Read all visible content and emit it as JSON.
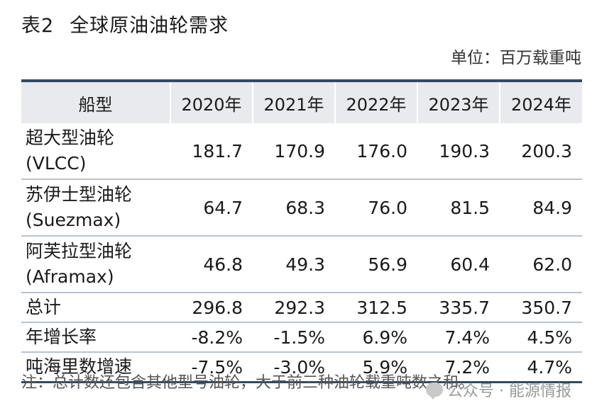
{
  "title": {
    "number": "表2",
    "text": "全球原油油轮需求"
  },
  "unit": "单位：百万载重吨",
  "table": {
    "headers": [
      "船型",
      "2020年",
      "2021年",
      "2022年",
      "2023年",
      "2024年"
    ],
    "rows": [
      {
        "name_line1": "超大型油轮",
        "name_line2": "(VLCC)",
        "values": [
          "181.7",
          "170.9",
          "176.0",
          "190.3",
          "200.3"
        ]
      },
      {
        "name_line1": "苏伊士型油轮",
        "name_line2": "(Suezmax)",
        "values": [
          "64.7",
          "68.3",
          "76.0",
          "81.5",
          "84.9"
        ]
      },
      {
        "name_line1": "阿芙拉型油轮",
        "name_line2": "(Aframax)",
        "values": [
          "46.8",
          "49.3",
          "56.9",
          "60.4",
          "62.0"
        ]
      },
      {
        "name_line1": "总计",
        "values": [
          "296.8",
          "292.3",
          "312.5",
          "335.7",
          "350.7"
        ]
      },
      {
        "name_line1": "年增长率",
        "values": [
          "-8.2%",
          "-1.5%",
          "6.9%",
          "7.4%",
          "4.5%"
        ]
      },
      {
        "name_line1": "吨海里数增速",
        "values": [
          "-7.5%",
          "-3.0%",
          "5.9%",
          "7.2%",
          "4.7%"
        ]
      }
    ]
  },
  "note": "注：总计数还包含其他型号油轮，大于前三种油轮载重吨数之和。",
  "watermark": {
    "icon": "chat-bubble-icon",
    "text": "公众号 · 能源情报"
  }
}
